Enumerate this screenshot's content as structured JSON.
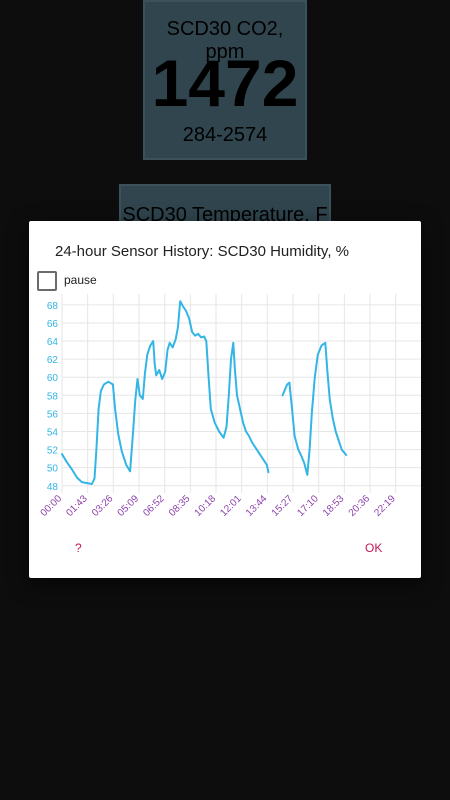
{
  "co2_tile": {
    "title": "SCD30 CO2, ppm",
    "value": "1472",
    "range": "284-2574"
  },
  "temp_tile": {
    "title": "SCD30 Temperature, F"
  },
  "dialog": {
    "title": "24-hour Sensor History: SCD30 Humidity, %",
    "pause_label": "pause",
    "help_label": "?",
    "ok_label": "OK"
  },
  "colors": {
    "line": "#33b5e5",
    "y_tick": "#33b5e5",
    "x_tick": "#8e44ad",
    "accent": "#c2185b",
    "tile_bg": "#4a6b78"
  },
  "chart_data": {
    "type": "line",
    "title": "",
    "xlabel": "",
    "ylabel": "",
    "x_ticks": [
      "00:00",
      "01:43",
      "03:26",
      "05:09",
      "06:52",
      "08:35",
      "10:18",
      "12:01",
      "13:44",
      "15:27",
      "17:10",
      "18:53",
      "20:36",
      "22:19"
    ],
    "y_ticks": [
      48,
      50,
      52,
      54,
      56,
      58,
      60,
      62,
      64,
      66,
      68
    ],
    "xlim": [
      0,
      24
    ],
    "ylim": [
      47.2,
      69.2
    ],
    "grid": true,
    "series": [
      {
        "name": "",
        "segments": [
          [
            [
              0.0,
              51.5
            ],
            [
              0.33,
              50.6
            ],
            [
              0.67,
              49.8
            ],
            [
              1.0,
              48.9
            ],
            [
              1.33,
              48.4
            ],
            [
              1.67,
              48.3
            ],
            [
              2.0,
              48.2
            ],
            [
              2.17,
              48.8
            ],
            [
              2.3,
              52.0
            ],
            [
              2.45,
              56.5
            ],
            [
              2.6,
              58.5
            ],
            [
              2.8,
              59.2
            ],
            [
              3.1,
              59.5
            ],
            [
              3.4,
              59.2
            ],
            [
              3.55,
              56.5
            ],
            [
              3.75,
              53.8
            ],
            [
              4.0,
              51.8
            ],
            [
              4.3,
              50.3
            ],
            [
              4.55,
              49.6
            ],
            [
              4.75,
              54.0
            ],
            [
              4.9,
              57.5
            ],
            [
              5.05,
              59.8
            ],
            [
              5.2,
              58.0
            ],
            [
              5.4,
              57.6
            ],
            [
              5.55,
              60.5
            ],
            [
              5.7,
              62.5
            ],
            [
              5.9,
              63.5
            ],
            [
              6.1,
              64.0
            ],
            [
              6.2,
              61.5
            ],
            [
              6.3,
              60.2
            ],
            [
              6.5,
              60.8
            ],
            [
              6.7,
              59.8
            ],
            [
              6.9,
              60.6
            ],
            [
              7.05,
              63.0
            ],
            [
              7.2,
              63.8
            ],
            [
              7.4,
              63.3
            ],
            [
              7.6,
              64.2
            ],
            [
              7.75,
              65.5
            ],
            [
              7.9,
              68.4
            ],
            [
              8.1,
              67.8
            ],
            [
              8.3,
              67.3
            ],
            [
              8.5,
              66.5
            ],
            [
              8.7,
              65.0
            ],
            [
              8.9,
              64.6
            ],
            [
              9.1,
              64.8
            ],
            [
              9.3,
              64.4
            ],
            [
              9.5,
              64.5
            ],
            [
              9.65,
              64.0
            ],
            [
              9.8,
              60.0
            ],
            [
              9.95,
              56.5
            ],
            [
              10.2,
              55.0
            ],
            [
              10.5,
              54.0
            ],
            [
              10.8,
              53.3
            ],
            [
              11.0,
              54.5
            ],
            [
              11.15,
              58.0
            ],
            [
              11.3,
              62.0
            ],
            [
              11.45,
              63.8
            ],
            [
              11.55,
              61.0
            ],
            [
              11.7,
              58.0
            ],
            [
              11.9,
              56.5
            ],
            [
              12.1,
              55.0
            ],
            [
              12.3,
              54.0
            ],
            [
              12.5,
              53.5
            ],
            [
              12.7,
              52.8
            ],
            [
              12.9,
              52.3
            ],
            [
              13.1,
              51.8
            ],
            [
              13.3,
              51.3
            ],
            [
              13.5,
              50.8
            ],
            [
              13.7,
              50.3
            ],
            [
              13.8,
              49.5
            ]
          ],
          [
            [
              14.75,
              58.0
            ],
            [
              15.05,
              59.2
            ],
            [
              15.2,
              59.4
            ],
            [
              15.35,
              57.0
            ],
            [
              15.55,
              53.5
            ],
            [
              15.8,
              52.0
            ],
            [
              16.0,
              51.3
            ],
            [
              16.2,
              50.5
            ],
            [
              16.4,
              49.2
            ],
            [
              16.55,
              52.0
            ],
            [
              16.7,
              56.0
            ],
            [
              16.9,
              60.0
            ],
            [
              17.1,
              62.5
            ],
            [
              17.35,
              63.5
            ],
            [
              17.6,
              63.8
            ],
            [
              17.75,
              60.5
            ],
            [
              17.9,
              57.5
            ],
            [
              18.1,
              55.5
            ],
            [
              18.3,
              54.0
            ],
            [
              18.5,
              53.0
            ],
            [
              18.7,
              52.0
            ],
            [
              18.9,
              51.6
            ],
            [
              19.0,
              51.4
            ]
          ]
        ]
      }
    ]
  }
}
